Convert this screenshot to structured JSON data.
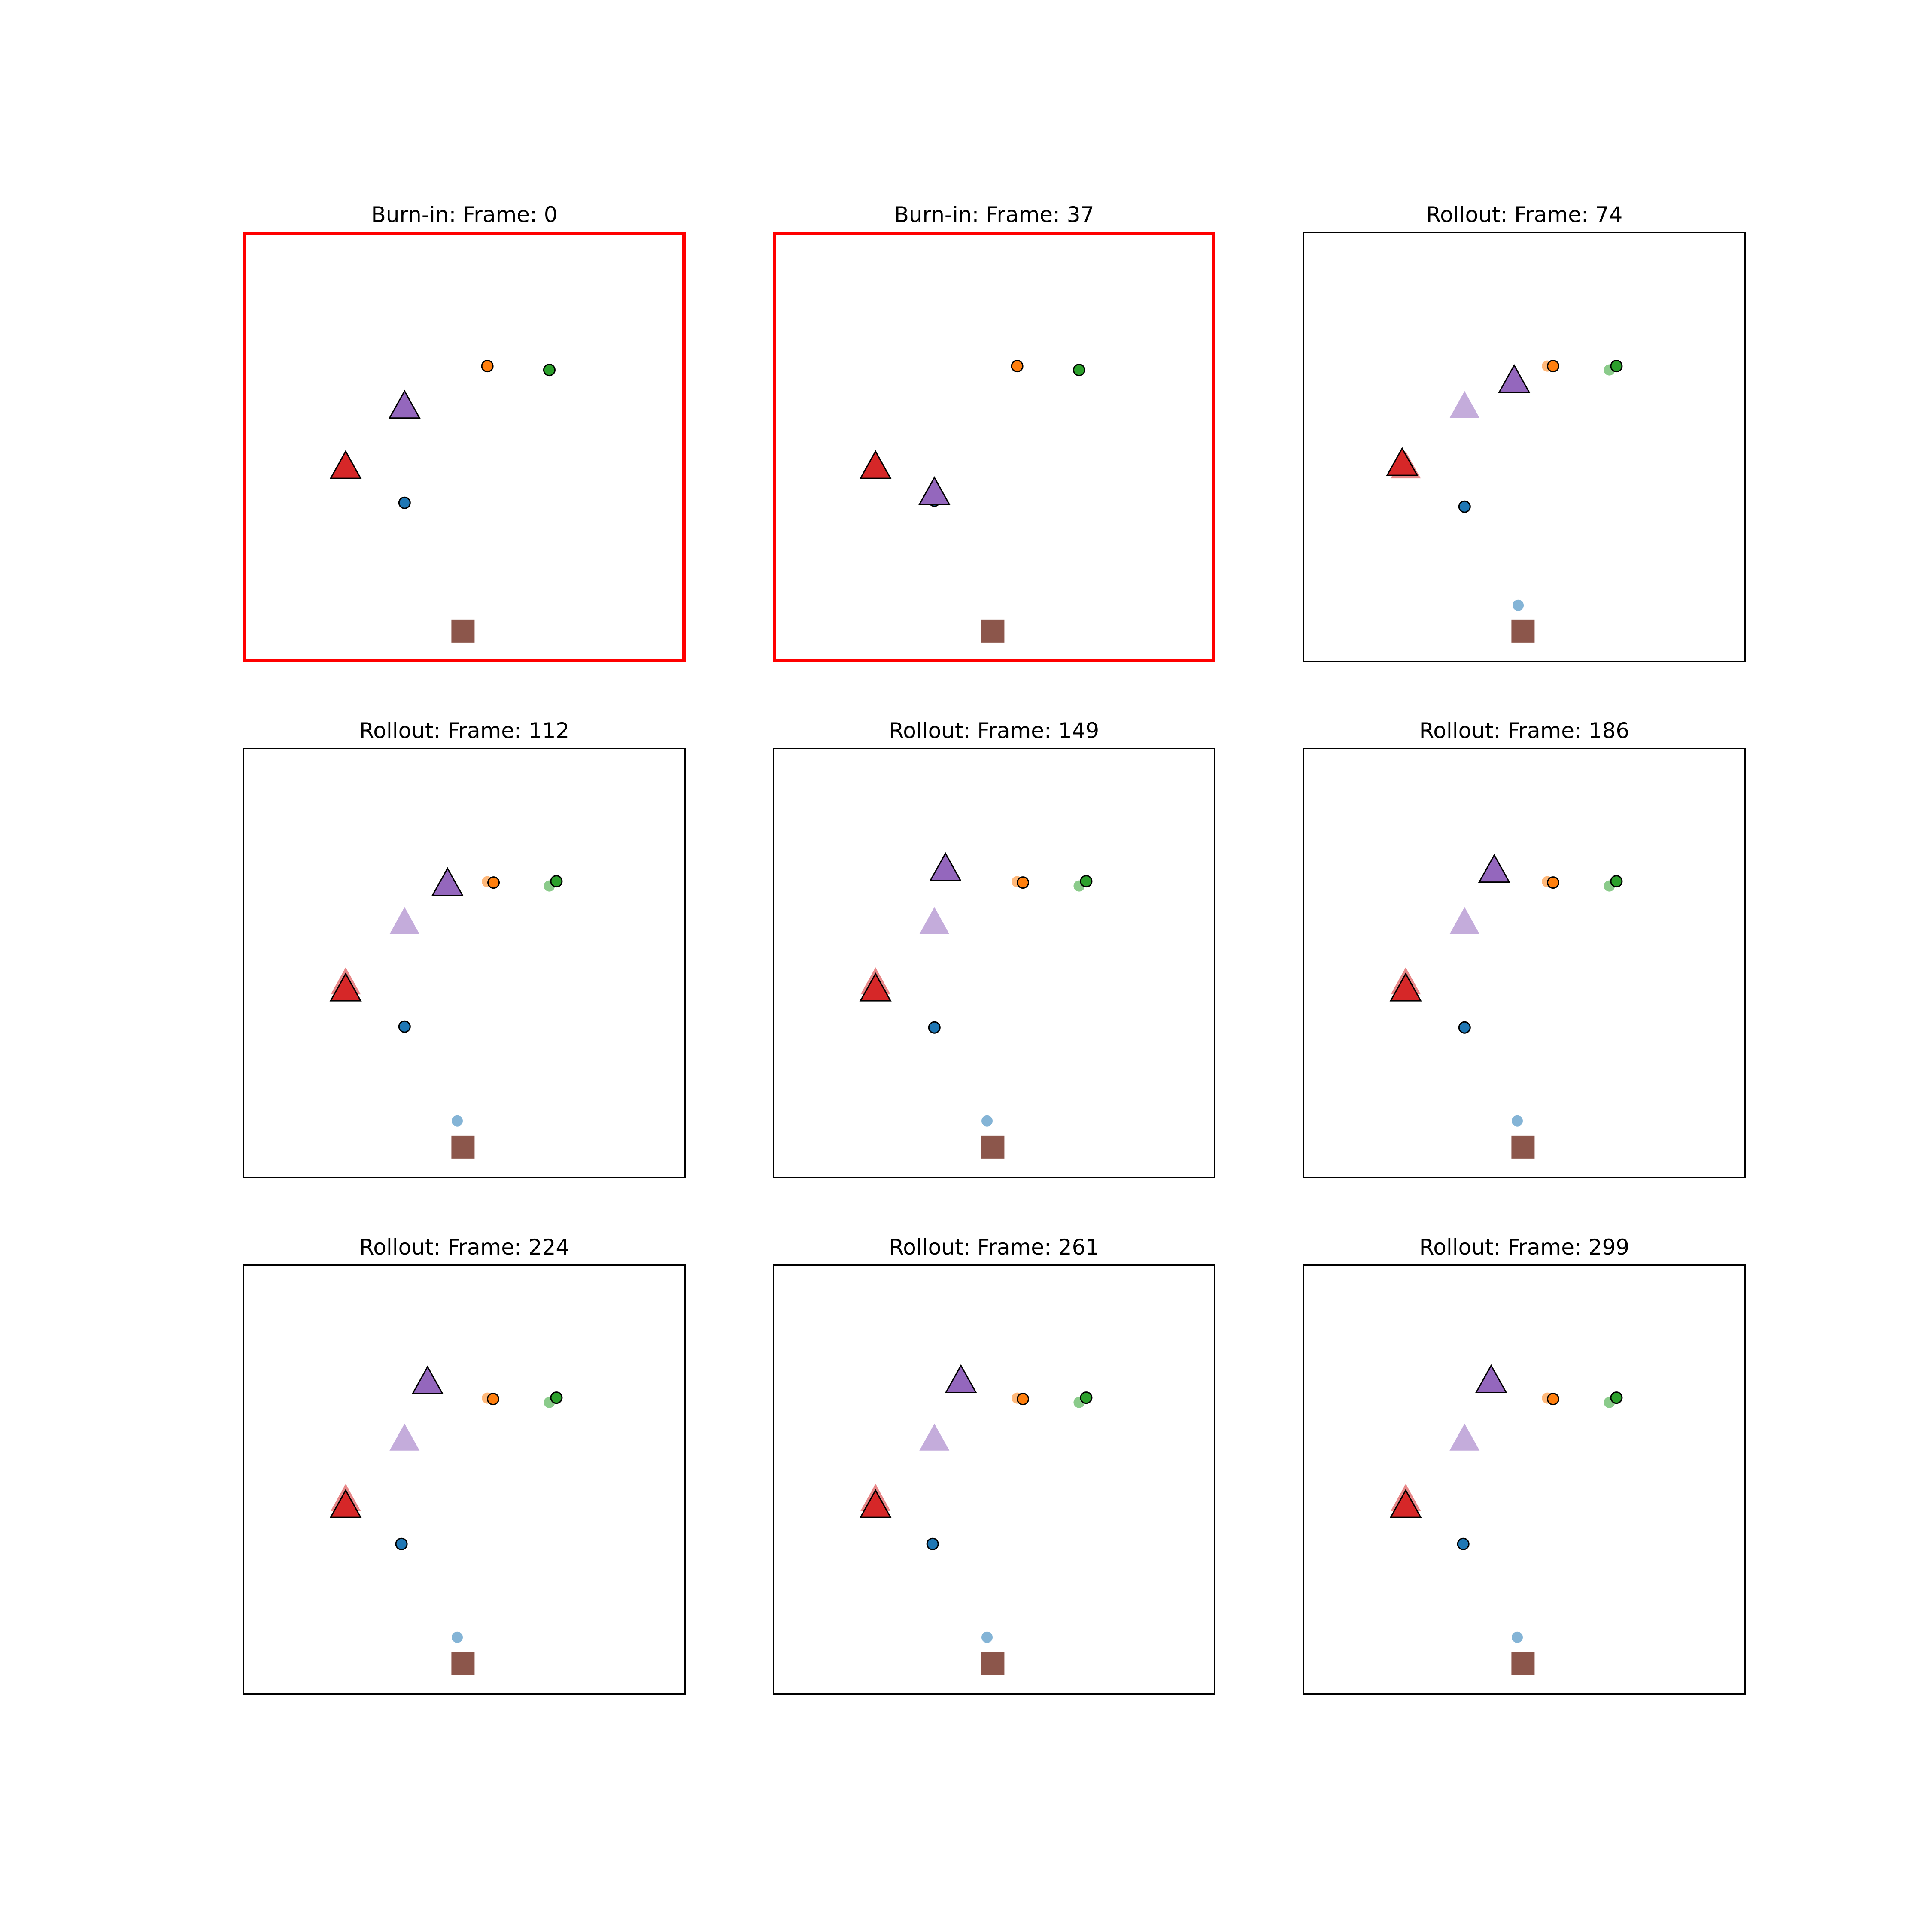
{
  "colors": {
    "burnin_frame": "#ff0000",
    "rollout_frame": "#000000",
    "blue": "#1f77b4",
    "orange": "#ff7f0e",
    "green": "#2ca02c",
    "red": "#d62728",
    "purple": "#9467bd",
    "brown": "#8c564b",
    "marker_edge": "#000000"
  },
  "marker_legend": {
    "ball_blue": "circle",
    "ball_orange": "circle",
    "ball_green": "circle",
    "obstacle_red": "triangle",
    "obstacle_purple": "triangle",
    "goal_brown": "square"
  },
  "chart_data": [
    {
      "type": "scatter",
      "title": "Burn-in: Frame: 0",
      "phase": "burn-in",
      "frame": 0,
      "xlim": [
        0,
        1
      ],
      "ylim": [
        0,
        1
      ],
      "grid": false,
      "ground_truth": [
        {
          "object": "blue",
          "shape": "circle",
          "x": 0.365,
          "y": 0.37
        },
        {
          "object": "orange",
          "shape": "circle",
          "x": 0.552,
          "y": 0.688
        },
        {
          "object": "green",
          "shape": "circle",
          "x": 0.692,
          "y": 0.679
        },
        {
          "object": "red",
          "shape": "triangle",
          "x": 0.232,
          "y": 0.455
        },
        {
          "object": "purple",
          "shape": "triangle",
          "x": 0.365,
          "y": 0.595
        },
        {
          "object": "brown",
          "shape": "square",
          "x": 0.497,
          "y": 0.072
        }
      ],
      "prediction": []
    },
    {
      "type": "scatter",
      "title": "Burn-in: Frame: 37",
      "phase": "burn-in",
      "frame": 37,
      "xlim": [
        0,
        1
      ],
      "ylim": [
        0,
        1
      ],
      "grid": false,
      "ground_truth": [
        {
          "object": "blue",
          "shape": "circle",
          "x": 0.365,
          "y": 0.375
        },
        {
          "object": "orange",
          "shape": "circle",
          "x": 0.552,
          "y": 0.688
        },
        {
          "object": "green",
          "shape": "circle",
          "x": 0.692,
          "y": 0.679
        },
        {
          "object": "red",
          "shape": "triangle",
          "x": 0.232,
          "y": 0.455
        },
        {
          "object": "purple",
          "shape": "triangle",
          "x": 0.365,
          "y": 0.394
        },
        {
          "object": "brown",
          "shape": "square",
          "x": 0.497,
          "y": 0.072
        }
      ],
      "prediction": []
    },
    {
      "type": "scatter",
      "title": "Rollout: Frame: 74",
      "phase": "rollout",
      "frame": 74,
      "xlim": [
        0,
        1
      ],
      "ylim": [
        0,
        1
      ],
      "grid": false,
      "ground_truth": [
        {
          "object": "blue",
          "shape": "circle",
          "x": 0.365,
          "y": 0.361
        },
        {
          "object": "orange",
          "shape": "circle",
          "x": 0.565,
          "y": 0.688
        },
        {
          "object": "green",
          "shape": "circle",
          "x": 0.708,
          "y": 0.688
        },
        {
          "object": "red",
          "shape": "triangle",
          "x": 0.224,
          "y": 0.462
        },
        {
          "object": "purple",
          "shape": "triangle",
          "x": 0.477,
          "y": 0.655
        },
        {
          "object": "brown",
          "shape": "square",
          "x": 0.497,
          "y": 0.072
        }
      ],
      "prediction": [
        {
          "object": "blue",
          "shape": "circle",
          "x": 0.486,
          "y": 0.132
        },
        {
          "object": "orange",
          "shape": "circle",
          "x": 0.552,
          "y": 0.688
        },
        {
          "object": "green",
          "shape": "circle",
          "x": 0.692,
          "y": 0.679
        },
        {
          "object": "red",
          "shape": "triangle",
          "x": 0.232,
          "y": 0.455
        },
        {
          "object": "purple",
          "shape": "triangle",
          "x": 0.365,
          "y": 0.595
        }
      ]
    },
    {
      "type": "scatter",
      "title": "Rollout: Frame: 112",
      "phase": "rollout",
      "frame": 112,
      "xlim": [
        0,
        1
      ],
      "ylim": [
        0,
        1
      ],
      "grid": false,
      "ground_truth": [
        {
          "object": "blue",
          "shape": "circle",
          "x": 0.365,
          "y": 0.352
        },
        {
          "object": "orange",
          "shape": "circle",
          "x": 0.566,
          "y": 0.687
        },
        {
          "object": "green",
          "shape": "circle",
          "x": 0.708,
          "y": 0.69
        },
        {
          "object": "red",
          "shape": "triangle",
          "x": 0.232,
          "y": 0.44
        },
        {
          "object": "purple",
          "shape": "triangle",
          "x": 0.462,
          "y": 0.685
        },
        {
          "object": "brown",
          "shape": "square",
          "x": 0.497,
          "y": 0.072
        }
      ],
      "prediction": [
        {
          "object": "blue",
          "shape": "circle",
          "x": 0.484,
          "y": 0.133
        },
        {
          "object": "orange",
          "shape": "circle",
          "x": 0.552,
          "y": 0.689
        },
        {
          "object": "green",
          "shape": "circle",
          "x": 0.692,
          "y": 0.679
        },
        {
          "object": "red",
          "shape": "triangle",
          "x": 0.232,
          "y": 0.455
        },
        {
          "object": "purple",
          "shape": "triangle",
          "x": 0.365,
          "y": 0.595
        }
      ]
    },
    {
      "type": "scatter",
      "title": "Rollout: Frame: 149",
      "phase": "rollout",
      "frame": 149,
      "xlim": [
        0,
        1
      ],
      "ylim": [
        0,
        1
      ],
      "grid": false,
      "ground_truth": [
        {
          "object": "blue",
          "shape": "circle",
          "x": 0.365,
          "y": 0.35
        },
        {
          "object": "orange",
          "shape": "circle",
          "x": 0.565,
          "y": 0.687
        },
        {
          "object": "green",
          "shape": "circle",
          "x": 0.708,
          "y": 0.69
        },
        {
          "object": "red",
          "shape": "triangle",
          "x": 0.232,
          "y": 0.44
        },
        {
          "object": "purple",
          "shape": "triangle",
          "x": 0.39,
          "y": 0.72
        },
        {
          "object": "brown",
          "shape": "square",
          "x": 0.497,
          "y": 0.072
        }
      ],
      "prediction": [
        {
          "object": "blue",
          "shape": "circle",
          "x": 0.484,
          "y": 0.133
        },
        {
          "object": "orange",
          "shape": "circle",
          "x": 0.552,
          "y": 0.689
        },
        {
          "object": "green",
          "shape": "circle",
          "x": 0.692,
          "y": 0.679
        },
        {
          "object": "red",
          "shape": "triangle",
          "x": 0.232,
          "y": 0.455
        },
        {
          "object": "purple",
          "shape": "triangle",
          "x": 0.365,
          "y": 0.595
        }
      ]
    },
    {
      "type": "scatter",
      "title": "Rollout: Frame: 186",
      "phase": "rollout",
      "frame": 186,
      "xlim": [
        0,
        1
      ],
      "ylim": [
        0,
        1
      ],
      "grid": false,
      "ground_truth": [
        {
          "object": "blue",
          "shape": "circle",
          "x": 0.365,
          "y": 0.35
        },
        {
          "object": "orange",
          "shape": "circle",
          "x": 0.565,
          "y": 0.687
        },
        {
          "object": "green",
          "shape": "circle",
          "x": 0.708,
          "y": 0.69
        },
        {
          "object": "red",
          "shape": "triangle",
          "x": 0.232,
          "y": 0.44
        },
        {
          "object": "purple",
          "shape": "triangle",
          "x": 0.432,
          "y": 0.716
        },
        {
          "object": "brown",
          "shape": "square",
          "x": 0.497,
          "y": 0.072
        }
      ],
      "prediction": [
        {
          "object": "blue",
          "shape": "circle",
          "x": 0.484,
          "y": 0.133
        },
        {
          "object": "orange",
          "shape": "circle",
          "x": 0.552,
          "y": 0.689
        },
        {
          "object": "green",
          "shape": "circle",
          "x": 0.692,
          "y": 0.679
        },
        {
          "object": "red",
          "shape": "triangle",
          "x": 0.232,
          "y": 0.455
        },
        {
          "object": "purple",
          "shape": "triangle",
          "x": 0.365,
          "y": 0.595
        }
      ]
    },
    {
      "type": "scatter",
      "title": "Rollout: Frame: 224",
      "phase": "rollout",
      "frame": 224,
      "xlim": [
        0,
        1
      ],
      "ylim": [
        0,
        1
      ],
      "grid": false,
      "ground_truth": [
        {
          "object": "blue",
          "shape": "circle",
          "x": 0.358,
          "y": 0.35
        },
        {
          "object": "orange",
          "shape": "circle",
          "x": 0.565,
          "y": 0.687
        },
        {
          "object": "green",
          "shape": "circle",
          "x": 0.708,
          "y": 0.69
        },
        {
          "object": "red",
          "shape": "triangle",
          "x": 0.232,
          "y": 0.44
        },
        {
          "object": "purple",
          "shape": "triangle",
          "x": 0.417,
          "y": 0.727
        },
        {
          "object": "brown",
          "shape": "square",
          "x": 0.497,
          "y": 0.072
        }
      ],
      "prediction": [
        {
          "object": "blue",
          "shape": "circle",
          "x": 0.484,
          "y": 0.133
        },
        {
          "object": "orange",
          "shape": "circle",
          "x": 0.552,
          "y": 0.689
        },
        {
          "object": "green",
          "shape": "circle",
          "x": 0.692,
          "y": 0.679
        },
        {
          "object": "red",
          "shape": "triangle",
          "x": 0.232,
          "y": 0.455
        },
        {
          "object": "purple",
          "shape": "triangle",
          "x": 0.365,
          "y": 0.595
        }
      ]
    },
    {
      "type": "scatter",
      "title": "Rollout: Frame: 261",
      "phase": "rollout",
      "frame": 261,
      "xlim": [
        0,
        1
      ],
      "ylim": [
        0,
        1
      ],
      "grid": false,
      "ground_truth": [
        {
          "object": "blue",
          "shape": "circle",
          "x": 0.361,
          "y": 0.35
        },
        {
          "object": "orange",
          "shape": "circle",
          "x": 0.565,
          "y": 0.687
        },
        {
          "object": "green",
          "shape": "circle",
          "x": 0.708,
          "y": 0.69
        },
        {
          "object": "red",
          "shape": "triangle",
          "x": 0.232,
          "y": 0.44
        },
        {
          "object": "purple",
          "shape": "triangle",
          "x": 0.425,
          "y": 0.73
        },
        {
          "object": "brown",
          "shape": "square",
          "x": 0.497,
          "y": 0.072
        }
      ],
      "prediction": [
        {
          "object": "blue",
          "shape": "circle",
          "x": 0.484,
          "y": 0.133
        },
        {
          "object": "orange",
          "shape": "circle",
          "x": 0.552,
          "y": 0.689
        },
        {
          "object": "green",
          "shape": "circle",
          "x": 0.692,
          "y": 0.679
        },
        {
          "object": "red",
          "shape": "triangle",
          "x": 0.232,
          "y": 0.455
        },
        {
          "object": "purple",
          "shape": "triangle",
          "x": 0.365,
          "y": 0.595
        }
      ]
    },
    {
      "type": "scatter",
      "title": "Rollout: Frame: 299",
      "phase": "rollout",
      "frame": 299,
      "xlim": [
        0,
        1
      ],
      "ylim": [
        0,
        1
      ],
      "grid": false,
      "ground_truth": [
        {
          "object": "blue",
          "shape": "circle",
          "x": 0.362,
          "y": 0.35
        },
        {
          "object": "orange",
          "shape": "circle",
          "x": 0.565,
          "y": 0.687
        },
        {
          "object": "green",
          "shape": "circle",
          "x": 0.708,
          "y": 0.69
        },
        {
          "object": "red",
          "shape": "triangle",
          "x": 0.232,
          "y": 0.44
        },
        {
          "object": "purple",
          "shape": "triangle",
          "x": 0.425,
          "y": 0.73
        },
        {
          "object": "brown",
          "shape": "square",
          "x": 0.497,
          "y": 0.072
        }
      ],
      "prediction": [
        {
          "object": "blue",
          "shape": "circle",
          "x": 0.484,
          "y": 0.133
        },
        {
          "object": "orange",
          "shape": "circle",
          "x": 0.552,
          "y": 0.689
        },
        {
          "object": "green",
          "shape": "circle",
          "x": 0.692,
          "y": 0.679
        },
        {
          "object": "red",
          "shape": "triangle",
          "x": 0.232,
          "y": 0.455
        },
        {
          "object": "purple",
          "shape": "triangle",
          "x": 0.365,
          "y": 0.595
        }
      ]
    }
  ]
}
